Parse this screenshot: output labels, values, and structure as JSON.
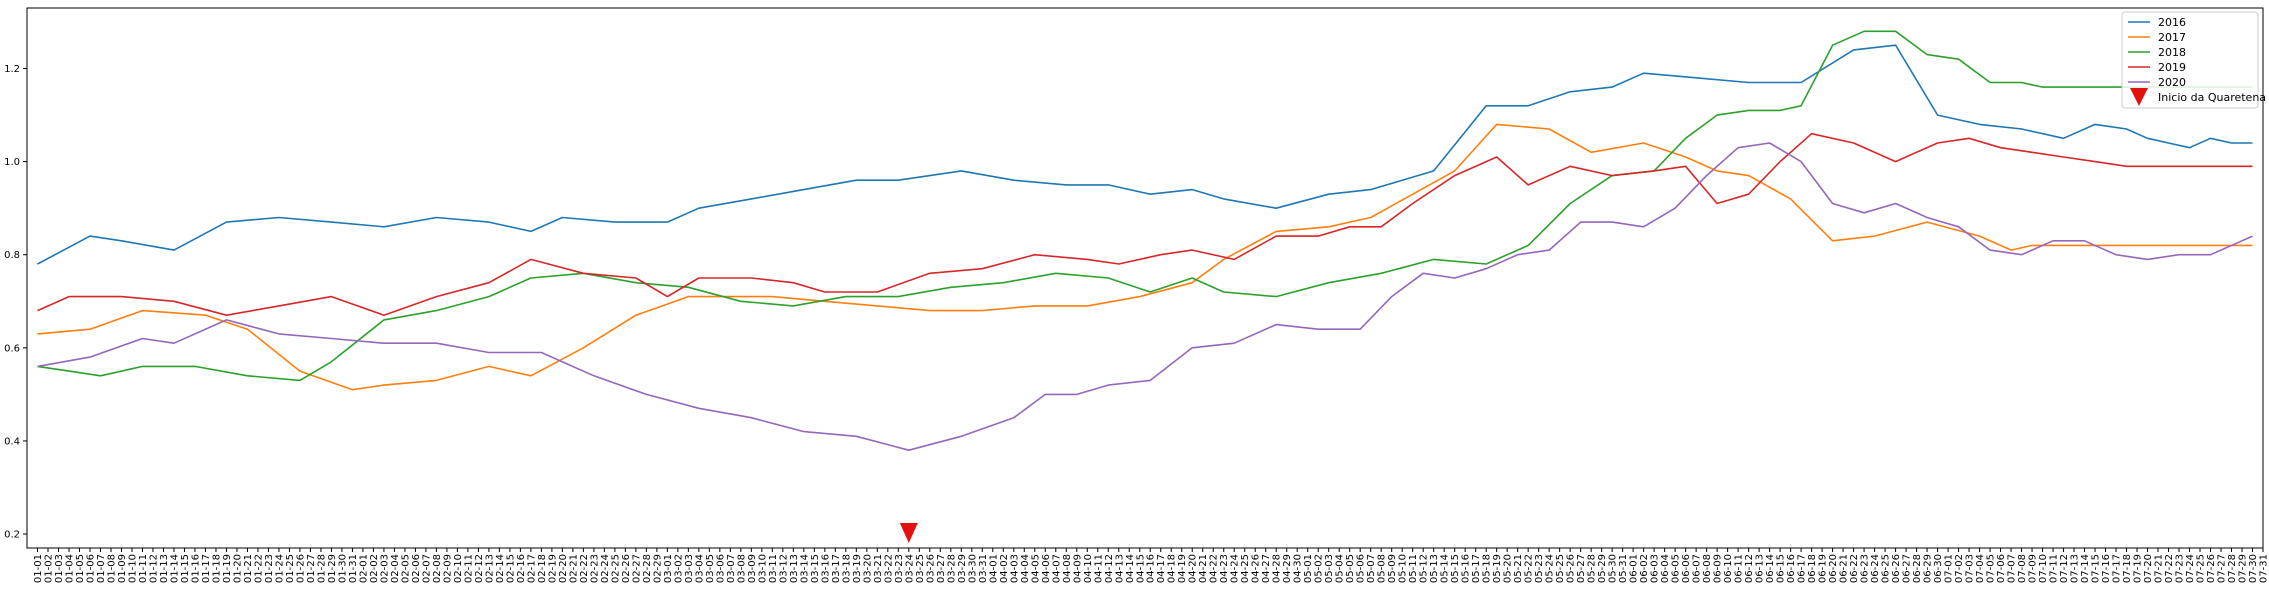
{
  "chart_data": {
    "type": "line",
    "title": "",
    "xlabel": "",
    "ylabel": "",
    "ylim": [
      0.17,
      1.33
    ],
    "yticks": [
      0.2,
      0.4,
      0.6,
      0.8,
      1.0,
      1.2
    ],
    "x_start_day": 0,
    "x_end_day": 212,
    "grid": false,
    "legend_position": "top-right",
    "series": [
      {
        "name": "2016",
        "color": "#1f77b4",
        "x": [
          0,
          5,
          8,
          13,
          18,
          23,
          28,
          33,
          38,
          43,
          47,
          50,
          55,
          60,
          63,
          68,
          73,
          78,
          82,
          88,
          93,
          98,
          102,
          106,
          110,
          113,
          118,
          123,
          127,
          133,
          138,
          142,
          146,
          150,
          153,
          158,
          163,
          168,
          173,
          177,
          181,
          185,
          189,
          193,
          196,
          199,
          201,
          203,
          205,
          207,
          209,
          211
        ],
        "y": [
          0.78,
          0.84,
          0.83,
          0.81,
          0.87,
          0.88,
          0.87,
          0.86,
          0.88,
          0.87,
          0.85,
          0.88,
          0.87,
          0.87,
          0.9,
          0.92,
          0.94,
          0.96,
          0.96,
          0.98,
          0.96,
          0.95,
          0.95,
          0.93,
          0.94,
          0.92,
          0.9,
          0.93,
          0.94,
          0.98,
          1.12,
          1.12,
          1.15,
          1.16,
          1.19,
          1.18,
          1.17,
          1.17,
          1.24,
          1.25,
          1.1,
          1.08,
          1.07,
          1.05,
          1.08,
          1.07,
          1.05,
          1.04,
          1.03,
          1.05,
          1.04,
          1.04
        ]
      },
      {
        "name": "2017",
        "color": "#ff7f0e",
        "x": [
          0,
          5,
          10,
          16,
          20,
          25,
          30,
          33,
          38,
          43,
          47,
          52,
          57,
          62,
          66,
          70,
          75,
          80,
          85,
          90,
          95,
          100,
          105,
          110,
          113,
          118,
          123,
          127,
          131,
          135,
          139,
          144,
          148,
          153,
          157,
          160,
          163,
          167,
          171,
          175,
          180,
          185,
          188,
          190,
          193,
          196,
          199,
          201,
          203,
          205,
          207,
          209,
          211
        ],
        "y": [
          0.63,
          0.64,
          0.68,
          0.67,
          0.64,
          0.55,
          0.51,
          0.52,
          0.53,
          0.56,
          0.54,
          0.6,
          0.67,
          0.71,
          0.71,
          0.71,
          0.7,
          0.69,
          0.68,
          0.68,
          0.69,
          0.69,
          0.71,
          0.74,
          0.79,
          0.85,
          0.86,
          0.88,
          0.93,
          0.98,
          1.08,
          1.07,
          1.02,
          1.04,
          1.01,
          0.98,
          0.97,
          0.92,
          0.83,
          0.84,
          0.87,
          0.84,
          0.81,
          0.82,
          0.82,
          0.82,
          0.82,
          0.82,
          0.82,
          0.82,
          0.82,
          0.82,
          0.82
        ]
      },
      {
        "name": "2018",
        "color": "#2ca02c",
        "x": [
          0,
          3,
          6,
          10,
          15,
          20,
          25,
          28,
          33,
          38,
          43,
          47,
          52,
          57,
          62,
          67,
          72,
          77,
          82,
          87,
          92,
          97,
          102,
          106,
          110,
          113,
          118,
          123,
          128,
          133,
          138,
          142,
          146,
          150,
          154,
          157,
          160,
          163,
          166,
          168,
          171,
          174,
          177,
          180,
          183,
          186,
          189,
          191,
          194,
          197,
          200,
          203,
          206,
          209,
          211
        ],
        "y": [
          0.56,
          0.55,
          0.54,
          0.56,
          0.56,
          0.54,
          0.53,
          0.57,
          0.66,
          0.68,
          0.71,
          0.75,
          0.76,
          0.74,
          0.73,
          0.7,
          0.69,
          0.71,
          0.71,
          0.73,
          0.74,
          0.76,
          0.75,
          0.72,
          0.75,
          0.72,
          0.71,
          0.74,
          0.76,
          0.79,
          0.78,
          0.82,
          0.91,
          0.97,
          0.98,
          1.05,
          1.1,
          1.11,
          1.11,
          1.12,
          1.25,
          1.28,
          1.28,
          1.23,
          1.22,
          1.17,
          1.17,
          1.16,
          1.16,
          1.16,
          1.16,
          1.16,
          1.16,
          1.16,
          1.16
        ]
      },
      {
        "name": "2019",
        "color": "#d62728",
        "x": [
          0,
          3,
          8,
          13,
          18,
          23,
          28,
          33,
          38,
          43,
          47,
          52,
          57,
          60,
          63,
          68,
          72,
          75,
          80,
          85,
          90,
          95,
          100,
          103,
          107,
          110,
          114,
          118,
          122,
          125,
          128,
          131,
          135,
          139,
          142,
          146,
          150,
          154,
          157,
          160,
          163,
          166,
          169,
          173,
          177,
          181,
          184,
          187,
          190,
          193,
          196,
          199,
          202,
          205,
          208,
          210,
          211
        ],
        "y": [
          0.68,
          0.71,
          0.71,
          0.7,
          0.67,
          0.69,
          0.71,
          0.67,
          0.71,
          0.74,
          0.79,
          0.76,
          0.75,
          0.71,
          0.75,
          0.75,
          0.74,
          0.72,
          0.72,
          0.76,
          0.77,
          0.8,
          0.79,
          0.78,
          0.8,
          0.81,
          0.79,
          0.84,
          0.84,
          0.86,
          0.86,
          0.91,
          0.97,
          1.01,
          0.95,
          0.99,
          0.97,
          0.98,
          0.99,
          0.91,
          0.93,
          1.0,
          1.06,
          1.04,
          1.0,
          1.04,
          1.05,
          1.03,
          1.02,
          1.01,
          1.0,
          0.99,
          0.99,
          0.99,
          0.99,
          0.99,
          0.99
        ]
      },
      {
        "name": "2020",
        "color": "#9467bd",
        "x": [
          0,
          5,
          10,
          13,
          18,
          23,
          28,
          33,
          38,
          43,
          48,
          53,
          58,
          63,
          68,
          73,
          78,
          83,
          88,
          93,
          96,
          99,
          102,
          106,
          110,
          114,
          118,
          122,
          126,
          129,
          132,
          135,
          138,
          141,
          144,
          147,
          150,
          153,
          156,
          159,
          162,
          165,
          168,
          171,
          174,
          177,
          180,
          183,
          186,
          189,
          192,
          195,
          198,
          201,
          204,
          207,
          210,
          211
        ],
        "y": [
          0.56,
          0.58,
          0.62,
          0.61,
          0.66,
          0.63,
          0.62,
          0.61,
          0.61,
          0.59,
          0.59,
          0.54,
          0.5,
          0.47,
          0.45,
          0.42,
          0.41,
          0.38,
          0.41,
          0.45,
          0.5,
          0.5,
          0.52,
          0.53,
          0.6,
          0.61,
          0.65,
          0.64,
          0.64,
          0.71,
          0.76,
          0.75,
          0.77,
          0.8,
          0.81,
          0.87,
          0.87,
          0.86,
          0.9,
          0.97,
          1.03,
          1.04,
          1.0,
          0.91,
          0.89,
          0.91,
          0.88,
          0.86,
          0.81,
          0.8,
          0.83,
          0.83,
          0.8,
          0.79,
          0.8,
          0.8,
          0.83,
          0.84
        ]
      }
    ],
    "marker": {
      "label": "Inicio da Quaretena",
      "x": 83,
      "y": 0.2,
      "color": "#e31010",
      "shape": "triangle-down"
    },
    "x_tick_labels": [
      "01-01",
      "01-02",
      "01-03",
      "01-04",
      "01-05",
      "01-06",
      "01-07",
      "01-08",
      "01-09",
      "01-10",
      "01-11",
      "01-12",
      "01-13",
      "01-14",
      "01-15",
      "01-16",
      "01-17",
      "01-18",
      "01-19",
      "01-20",
      "01-21",
      "01-22",
      "01-23",
      "01-24",
      "01-25",
      "01-26",
      "01-27",
      "01-28",
      "01-29",
      "01-30",
      "01-31",
      "02-01",
      "02-02",
      "02-03",
      "02-04",
      "02-05",
      "02-06",
      "02-07",
      "02-08",
      "02-09",
      "02-10",
      "02-11",
      "02-12",
      "02-13",
      "02-14",
      "02-15",
      "02-16",
      "02-17",
      "02-18",
      "02-19",
      "02-20",
      "02-21",
      "02-22",
      "02-23",
      "02-24",
      "02-25",
      "02-26",
      "02-27",
      "02-28",
      "02-29",
      "03-01",
      "03-02",
      "03-03",
      "03-04",
      "03-05",
      "03-06",
      "03-07",
      "03-08",
      "03-09",
      "03-10",
      "03-11",
      "03-12",
      "03-13",
      "03-14",
      "03-15",
      "03-16",
      "03-17",
      "03-18",
      "03-19",
      "03-20",
      "03-21",
      "03-22",
      "03-23",
      "03-24",
      "03-25",
      "03-26",
      "03-27",
      "03-28",
      "03-29",
      "03-30",
      "03-31",
      "04-01",
      "04-02",
      "04-03",
      "04-04",
      "04-05",
      "04-06",
      "04-07",
      "04-08",
      "04-09",
      "04-10",
      "04-11",
      "04-12",
      "04-13",
      "04-14",
      "04-15",
      "04-16",
      "04-17",
      "04-18",
      "04-19",
      "04-20",
      "04-21",
      "04-22",
      "04-23",
      "04-24",
      "04-25",
      "04-26",
      "04-27",
      "04-28",
      "04-29",
      "04-30",
      "05-01",
      "05-02",
      "05-03",
      "05-04",
      "05-05",
      "05-06",
      "05-07",
      "05-08",
      "05-09",
      "05-10",
      "05-11",
      "05-12",
      "05-13",
      "05-14",
      "05-15",
      "05-16",
      "05-17",
      "05-18",
      "05-19",
      "05-20",
      "05-21",
      "05-22",
      "05-23",
      "05-24",
      "05-25",
      "05-26",
      "05-27",
      "05-28",
      "05-29",
      "05-30",
      "05-31",
      "06-01",
      "06-02",
      "06-03",
      "06-04",
      "06-05",
      "06-06",
      "06-07",
      "06-08",
      "06-09",
      "06-10",
      "06-11",
      "06-12",
      "06-13",
      "06-14",
      "06-15",
      "06-16",
      "06-17",
      "06-18",
      "06-19",
      "06-20",
      "06-21",
      "06-22",
      "06-23",
      "06-24",
      "06-25",
      "06-26",
      "06-27",
      "06-28",
      "06-29",
      "06-30",
      "07-01",
      "07-02",
      "07-03",
      "07-04",
      "07-05",
      "07-06",
      "07-07",
      "07-08",
      "07-09",
      "07-10",
      "07-11",
      "07-12",
      "07-13",
      "07-14",
      "07-15",
      "07-16",
      "07-17",
      "07-18",
      "07-19",
      "07-20",
      "07-21",
      "07-22",
      "07-23",
      "07-24",
      "07-25",
      "07-26",
      "07-27",
      "07-28",
      "07-29",
      "07-30",
      "07-31"
    ]
  }
}
